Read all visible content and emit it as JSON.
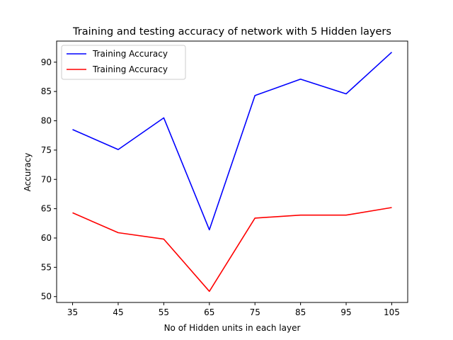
{
  "chart_data": {
    "type": "line",
    "title": "Training and testing accuracy of network with 5 Hidden layers",
    "xlabel": "No of Hidden units in each layer",
    "ylabel": "Accuracy",
    "x": [
      35,
      45,
      55,
      65,
      75,
      85,
      95,
      105
    ],
    "xticks": [
      35,
      45,
      55,
      65,
      75,
      85,
      95,
      105
    ],
    "yticks": [
      50,
      55,
      60,
      65,
      70,
      75,
      80,
      85,
      90
    ],
    "xlim": [
      31.5,
      108.5
    ],
    "ylim": [
      49.0,
      93.6
    ],
    "grid": false,
    "legend_position": "upper-left",
    "series": [
      {
        "name": "Training Accuracy",
        "color": "#0000ff",
        "values": [
          78.5,
          75.1,
          80.5,
          61.4,
          84.3,
          87.1,
          84.6,
          91.7
        ]
      },
      {
        "name": "Training Accuracy",
        "color": "#ff0000",
        "values": [
          64.3,
          60.9,
          59.8,
          50.9,
          63.4,
          63.9,
          63.9,
          65.2
        ]
      }
    ]
  }
}
